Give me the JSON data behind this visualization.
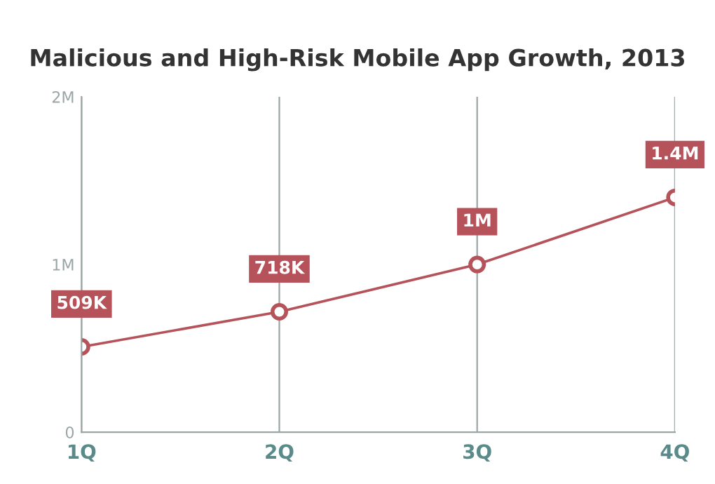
{
  "chart_data": {
    "type": "line",
    "title": "Malicious and High-Risk Mobile App Growth, 2013",
    "categories": [
      "1Q",
      "2Q",
      "3Q",
      "4Q"
    ],
    "series": [
      {
        "color": "#b5525a",
        "values": [
          509000,
          718000,
          1000000,
          1400000
        ],
        "value_labels": [
          "509K",
          "718K",
          "1M",
          "1.4M"
        ]
      }
    ],
    "ylim": [
      0,
      2000000
    ],
    "yticks": [
      {
        "value": 0,
        "label": "0"
      },
      {
        "value": 1000000,
        "label": "1M"
      },
      {
        "value": 2000000,
        "label": "2M"
      }
    ],
    "grid": "x",
    "marker": "circle",
    "line_style": "solid",
    "legend": false
  }
}
